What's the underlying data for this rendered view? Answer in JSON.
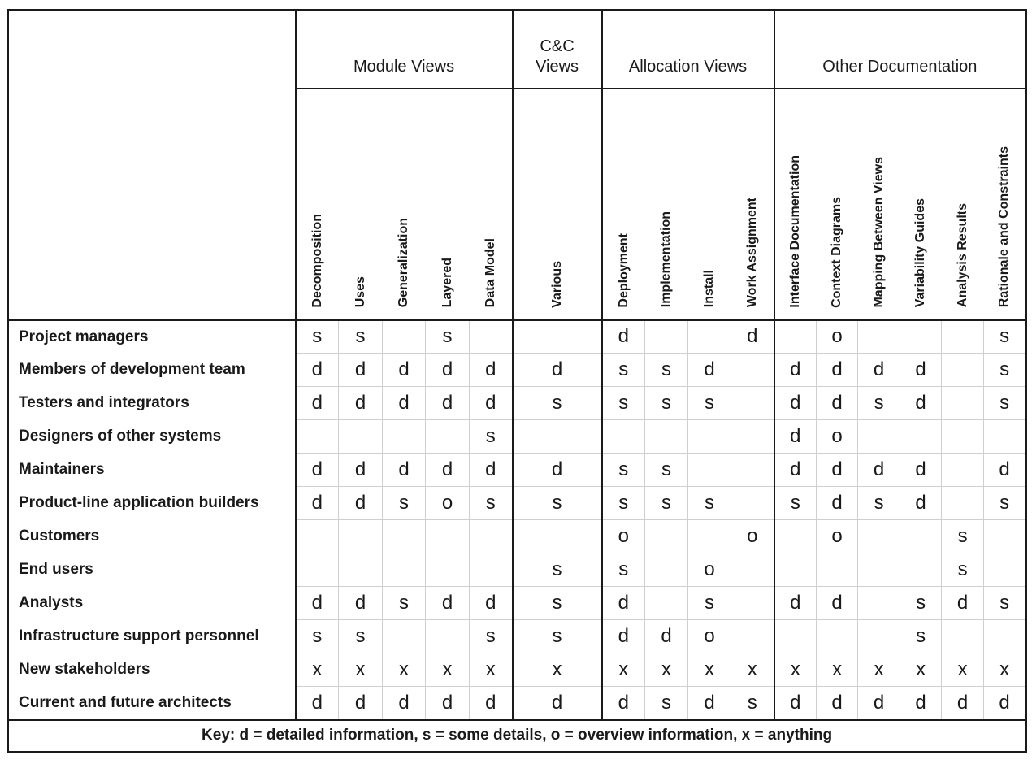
{
  "table": {
    "corner_label": "",
    "groups": [
      {
        "label": "Module Views",
        "columns": [
          "Decomposition",
          "Uses",
          "Generalization",
          "Layered",
          "Data Model"
        ]
      },
      {
        "label": "C&C\nViews",
        "columns": [
          "Various"
        ]
      },
      {
        "label": "Allocation Views",
        "columns": [
          "Deployment",
          "Implementation",
          "Install",
          "Work Assignment"
        ]
      },
      {
        "label": "Other Documentation",
        "columns": [
          "Interface Documentation",
          "Context Diagrams",
          "Mapping Between Views",
          "Variability Guides",
          "Analysis Results",
          "Rationale and Constraints"
        ]
      }
    ],
    "rows": [
      {
        "label": "Project managers",
        "cells": [
          "s",
          "s",
          "",
          "s",
          "",
          "",
          "d",
          "",
          "",
          "d",
          "",
          "o",
          "",
          "",
          "",
          "s"
        ]
      },
      {
        "label": "Members of development team",
        "cells": [
          "d",
          "d",
          "d",
          "d",
          "d",
          "d",
          "s",
          "s",
          "d",
          "",
          "d",
          "d",
          "d",
          "d",
          "",
          "s"
        ]
      },
      {
        "label": "Testers and integrators",
        "cells": [
          "d",
          "d",
          "d",
          "d",
          "d",
          "s",
          "s",
          "s",
          "s",
          "",
          "d",
          "d",
          "s",
          "d",
          "",
          "s"
        ]
      },
      {
        "label": "Designers of other systems",
        "cells": [
          "",
          "",
          "",
          "",
          "s",
          "",
          "",
          "",
          "",
          "",
          "d",
          "o",
          "",
          "",
          "",
          ""
        ]
      },
      {
        "label": "Maintainers",
        "cells": [
          "d",
          "d",
          "d",
          "d",
          "d",
          "d",
          "s",
          "s",
          "",
          "",
          "d",
          "d",
          "d",
          "d",
          "",
          "d"
        ]
      },
      {
        "label": "Product-line application builders",
        "cells": [
          "d",
          "d",
          "s",
          "o",
          "s",
          "s",
          "s",
          "s",
          "s",
          "",
          "s",
          "d",
          "s",
          "d",
          "",
          "s"
        ]
      },
      {
        "label": "Customers",
        "cells": [
          "",
          "",
          "",
          "",
          "",
          "",
          "o",
          "",
          "",
          "o",
          "",
          "o",
          "",
          "",
          "s",
          ""
        ]
      },
      {
        "label": "End users",
        "cells": [
          "",
          "",
          "",
          "",
          "",
          "s",
          "s",
          "",
          "o",
          "",
          "",
          "",
          "",
          "",
          "s",
          ""
        ]
      },
      {
        "label": "Analysts",
        "cells": [
          "d",
          "d",
          "s",
          "d",
          "d",
          "s",
          "d",
          "",
          "s",
          "",
          "d",
          "d",
          "",
          "s",
          "d",
          "s"
        ]
      },
      {
        "label": "Infrastructure support personnel",
        "cells": [
          "s",
          "s",
          "",
          "",
          "s",
          "s",
          "d",
          "d",
          "o",
          "",
          "",
          "",
          "",
          "s",
          "",
          ""
        ]
      },
      {
        "label": "New stakeholders",
        "cells": [
          "x",
          "x",
          "x",
          "x",
          "x",
          "x",
          "x",
          "x",
          "x",
          "x",
          "x",
          "x",
          "x",
          "x",
          "x",
          "x"
        ]
      },
      {
        "label": "Current and future architects",
        "cells": [
          "d",
          "d",
          "d",
          "d",
          "d",
          "d",
          "d",
          "s",
          "d",
          "s",
          "d",
          "d",
          "d",
          "d",
          "d",
          "d"
        ]
      }
    ],
    "key": "Key: d = detailed information, s = some details, o = overview information, x = anything"
  },
  "legend_codes": {
    "d": "detailed information",
    "s": "some details",
    "o": "overview information",
    "x": "anything"
  },
  "colors": {
    "border_dark": "#1a1a1a",
    "grid_light": "#cfcfcf",
    "background": "#ffffff",
    "text": "#1a1a1a"
  }
}
